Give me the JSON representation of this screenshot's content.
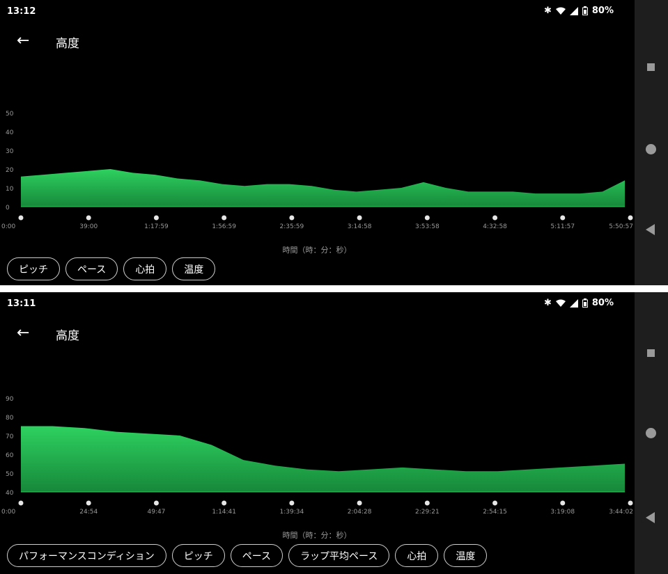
{
  "screens": [
    {
      "status": {
        "time": "13:12",
        "battery": "80%"
      },
      "title": "高度",
      "xlabel": "時間（時：分：秒）",
      "chips": [
        "ピッチ",
        "ペース",
        "心拍",
        "温度"
      ]
    },
    {
      "status": {
        "time": "13:11",
        "battery": "80%"
      },
      "title": "高度",
      "xlabel": "時間（時：分：秒）",
      "chips": [
        "パフォーマンスコンディション",
        "ピッチ",
        "ペース",
        "ラップ平均ペース",
        "心拍",
        "温度"
      ]
    }
  ],
  "colors": {
    "fill_top": "#2ed160",
    "fill_bottom": "#17883a",
    "background": "#000000",
    "tick_text": "#9a9a9a"
  },
  "icons": {
    "bluetooth": "bluetooth-icon",
    "wifi": "wifi-icon",
    "signal": "signal-icon",
    "battery": "battery-icon",
    "back": "arrow-left-icon"
  },
  "chart_data": [
    {
      "type": "area",
      "title": "高度",
      "xlabel": "時間（時：分：秒）",
      "ylabel": "",
      "ylim": [
        0,
        60
      ],
      "yticks": [
        0,
        10,
        20,
        30,
        40,
        50
      ],
      "xticks": [
        "0:00",
        "39:00",
        "1:17:59",
        "1:56:59",
        "2:35:59",
        "3:14:58",
        "3:53:58",
        "4:32:58",
        "5:11:57",
        "5:50:57"
      ],
      "x_min": [
        0,
        13,
        26,
        39,
        52,
        65,
        78,
        91,
        104,
        117,
        130,
        143,
        156,
        169,
        182,
        195,
        208,
        221,
        234,
        247,
        260,
        273,
        286,
        299,
        312,
        325,
        338,
        351
      ],
      "values": [
        16,
        17,
        18,
        19,
        20,
        18,
        17,
        15,
        14,
        12,
        11,
        12,
        12,
        11,
        9,
        8,
        9,
        10,
        13,
        10,
        8,
        8,
        8,
        7,
        7,
        7,
        8,
        14
      ]
    },
    {
      "type": "area",
      "title": "高度",
      "xlabel": "時間（時：分：秒）",
      "ylabel": "",
      "ylim": [
        40,
        100
      ],
      "yticks": [
        40,
        50,
        60,
        70,
        80,
        90
      ],
      "xticks": [
        "0:00",
        "24:54",
        "49:47",
        "1:14:41",
        "1:39:34",
        "2:04:28",
        "2:29:21",
        "2:54:15",
        "3:19:08",
        "3:44:02"
      ],
      "x_min": [
        0,
        5,
        10,
        15,
        20,
        25,
        30,
        35,
        40,
        45,
        50,
        55,
        60,
        65,
        70,
        75,
        80,
        85,
        90,
        95
      ],
      "values": [
        75,
        75,
        74,
        72,
        71,
        70,
        65,
        57,
        54,
        52,
        51,
        52,
        53,
        52,
        51,
        51,
        52,
        53,
        54,
        55
      ]
    }
  ]
}
